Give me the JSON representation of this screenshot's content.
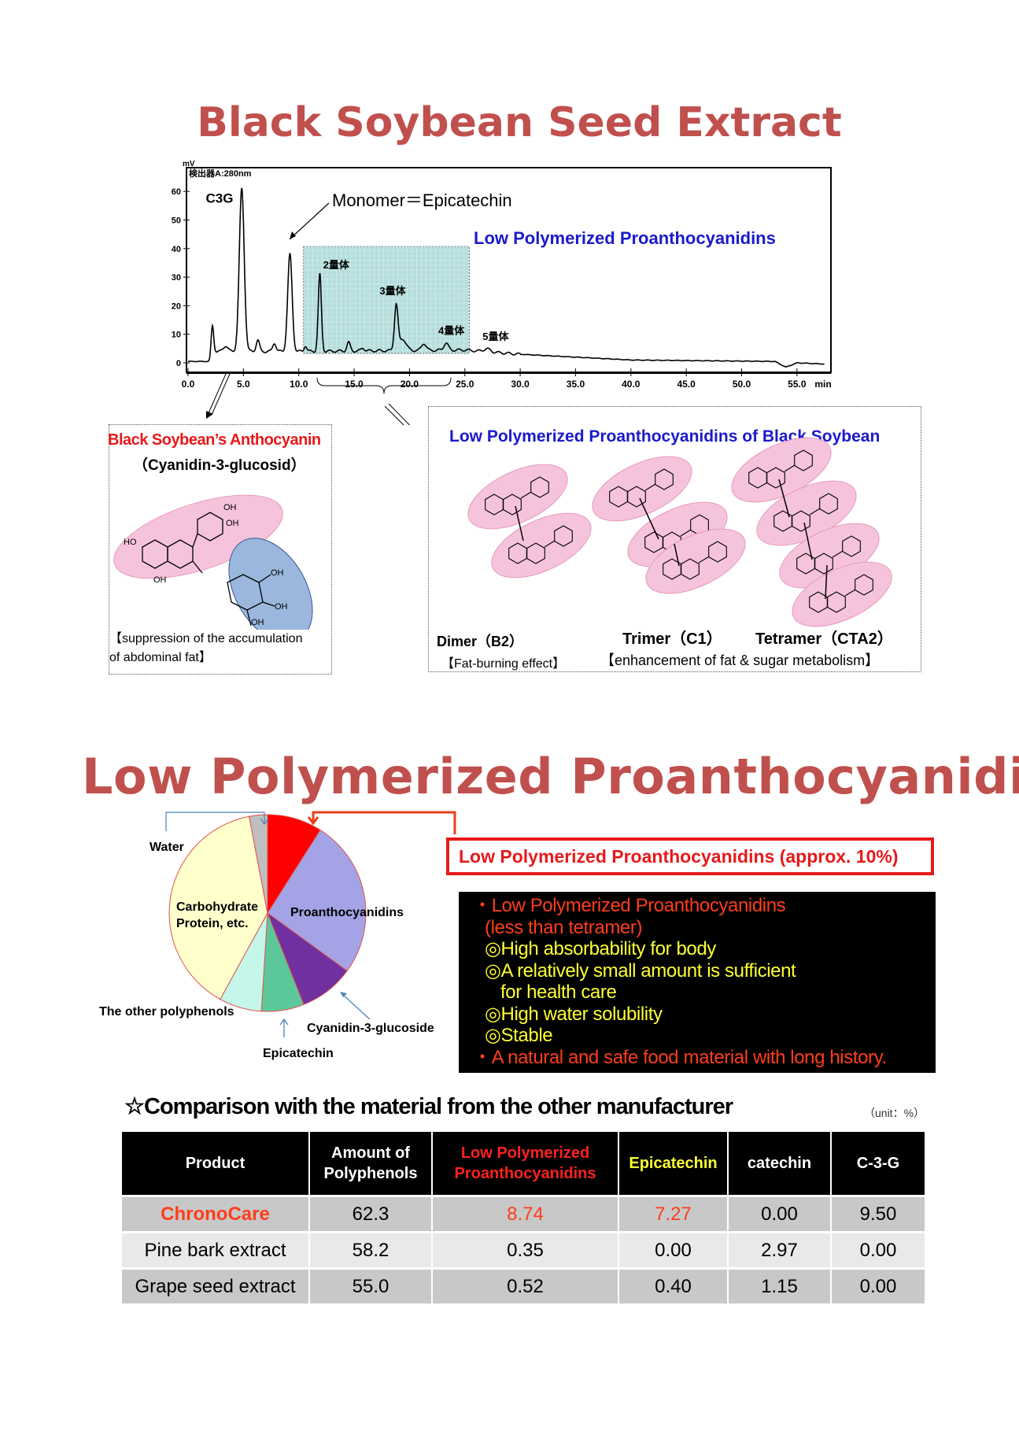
{
  "title_top": "Black Soybean Seed Extract",
  "title_middle": "Low Polymerized Proanthocyanidins",
  "colors": {
    "title": "#c0504d",
    "red": "#e8191a",
    "blue": "#1a1acc",
    "pink_ellipse": "#f6c3dc",
    "blue_ellipse": "#9bb7dd",
    "teal_box": "#a9d8d8"
  },
  "chart_data": [
    {
      "type": "line",
      "detector_label": "検出器A:280nm",
      "y_unit": "mV",
      "x_unit": "min",
      "xlim": [
        0,
        58
      ],
      "ylim": [
        0,
        65
      ],
      "x_ticks": [
        "0.0",
        "5.0",
        "10.0",
        "15.0",
        "20.0",
        "25.0",
        "30.0",
        "35.0",
        "40.0",
        "45.0",
        "50.0",
        "55.0"
      ],
      "y_ticks": [
        "0",
        "10",
        "20",
        "30",
        "40",
        "50",
        "60"
      ],
      "baseline": [
        [
          0,
          0.5
        ],
        [
          2,
          0.5
        ],
        [
          2.5,
          4
        ],
        [
          10,
          4
        ],
        [
          25,
          4.5
        ],
        [
          30,
          3
        ],
        [
          40,
          1
        ],
        [
          53,
          0.5
        ],
        [
          54,
          -1.5
        ],
        [
          55,
          0
        ],
        [
          58,
          -0.5
        ]
      ],
      "peaks": [
        [
          2.2,
          11,
          0.12
        ],
        [
          3.4,
          2,
          0.2
        ],
        [
          4.85,
          57,
          0.22
        ],
        [
          6.3,
          4,
          0.15
        ],
        [
          7.8,
          3,
          0.15
        ],
        [
          9.2,
          34,
          0.2
        ],
        [
          10.6,
          2,
          0.12
        ],
        [
          11.9,
          27,
          0.14
        ],
        [
          14.5,
          3,
          0.15
        ],
        [
          15.8,
          1,
          0.15
        ],
        [
          18.8,
          16,
          0.16
        ],
        [
          19.4,
          4,
          0.3
        ],
        [
          21.3,
          2.5,
          0.2
        ],
        [
          23.3,
          2.5,
          0.2
        ],
        [
          27.0,
          1,
          0.3
        ]
      ],
      "highlight_range": [
        10.4,
        25.4
      ],
      "peak_labels": [
        {
          "text": "C3G",
          "x": 1.6,
          "y": 56
        },
        {
          "text": "2量体",
          "x": 12.2,
          "y": 33
        },
        {
          "text": "3量体",
          "x": 17.3,
          "y": 24
        },
        {
          "text": "4量体",
          "x": 22.6,
          "y": 10
        },
        {
          "text": "5量体",
          "x": 26.6,
          "y": 8
        }
      ],
      "annotation_monomer": "Monomer＝Epicatechin",
      "annotation_lpp": "Low Polymerized Proanthocyanidins"
    },
    {
      "type": "pie",
      "slices": [
        {
          "label": "Low Polymerized Proanthocyanidins",
          "value": 9,
          "color": "#ff0000"
        },
        {
          "label": "Proanthocyanidins",
          "value": 26,
          "color": "#a3a3e6"
        },
        {
          "label": "Cyanidin-3-glucoside",
          "value": 9,
          "color": "#7030a0"
        },
        {
          "label": "Epicatechin",
          "value": 7,
          "color": "#5cc89a"
        },
        {
          "label": "The other polyphenols",
          "value": 7,
          "color": "#c4f7ea"
        },
        {
          "label": "Carbohydrate Protein, etc.",
          "value": 39,
          "color": "#ffffcc"
        },
        {
          "label": "Water",
          "value": 3,
          "color": "#bfbfbf"
        }
      ]
    }
  ],
  "pie_labels": {
    "water": "Water",
    "carb1": "Carbohydrate",
    "carb2": "Protein, etc.",
    "proantho": "Proanthocyanidins",
    "other": "The other polyphenols",
    "c3g": "Cyanidin-3-glucoside",
    "epi": "Epicatechin"
  },
  "left_box": {
    "title": "Black Soybean’s Anthocyanin",
    "subtitle": "（Cyanidin-3-glucosid）",
    "effect1": "【suppression of  the accumulation",
    "effect2": "of abdominal fat】",
    "oh": "OH",
    "ho": "HO"
  },
  "right_box": {
    "title": "Low Polymerized Proanthocyanidins of Black Soybean",
    "dimer": "Dimer（B2）",
    "dimer_effect": "【Fat-burning effect】",
    "trimer": "Trimer（C1）",
    "tetramer": "Tetramer（CTA2）",
    "tri_tetra_effect": "【enhancement of fat & sugar metabolism】"
  },
  "callout": "Low Polymerized Proanthocyanidins  (approx. 10%)",
  "features": [
    {
      "text": "・Low Polymerized Proanthocyanidins",
      "color": "red"
    },
    {
      "text": "(less than tetramer)",
      "color": "red"
    },
    {
      "text": "◎High absorbability for body",
      "color": "yellow"
    },
    {
      "text": "◎A relatively small amount is sufficient",
      "color": "yellow"
    },
    {
      "text": "for health care",
      "color": "yellow"
    },
    {
      "text": "◎High water solubility",
      "color": "yellow"
    },
    {
      "text": "◎Stable",
      "color": "yellow"
    },
    {
      "text": "・A natural and safe food material with long history.",
      "color": "red"
    }
  ],
  "comparison": {
    "title": "☆Comparison with the material from the other manufacturer",
    "unit": "（unit：%）",
    "headers": [
      "Product",
      "Amount of Polyphenols",
      "Low Polymerized Proanthocyanidins",
      "Epicatechin",
      "catechin",
      "C-3-G"
    ],
    "rows": [
      [
        "ChronoCare",
        "62.3",
        "8.74",
        "7.27",
        "0.00",
        "9.50"
      ],
      [
        "Pine bark extract",
        "58.2",
        "0.35",
        "0.00",
        "2.97",
        "0.00"
      ],
      [
        "Grape seed extract",
        "55.0",
        "0.52",
        "0.40",
        "1.15",
        "0.00"
      ]
    ]
  }
}
